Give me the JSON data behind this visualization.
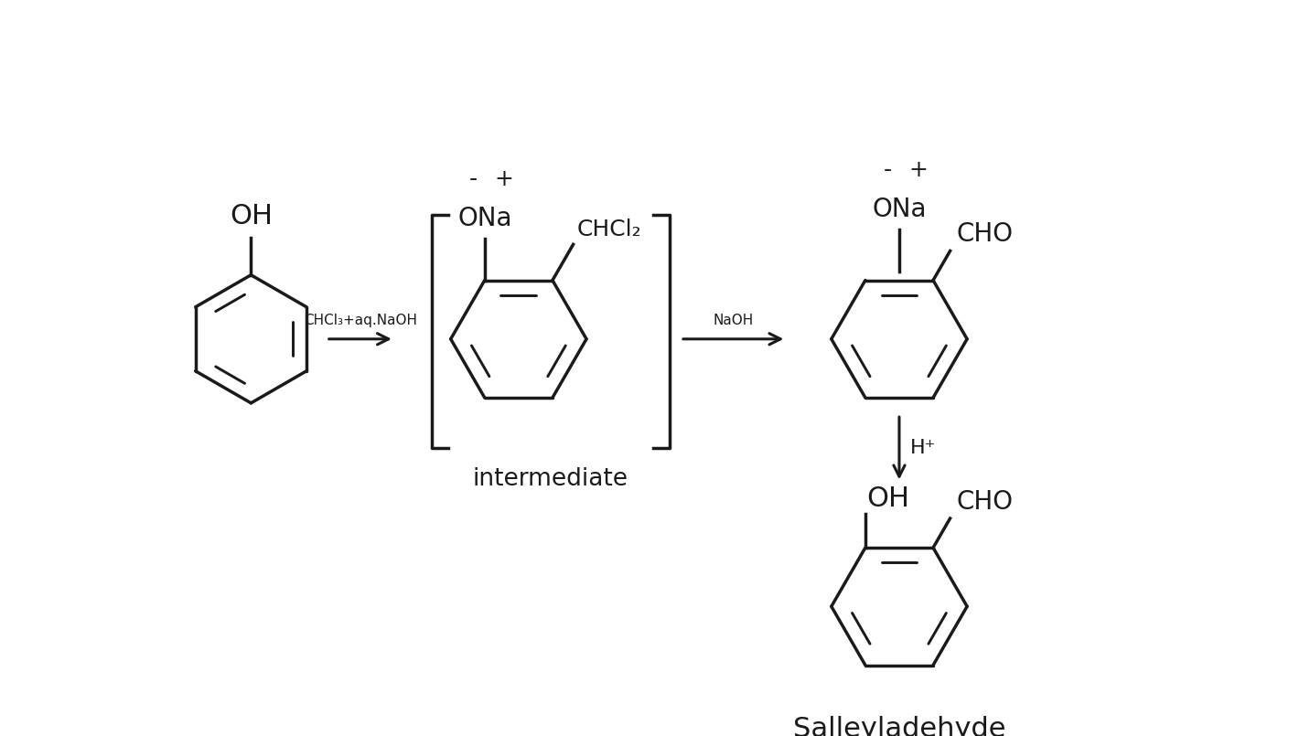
{
  "background_color": "#ffffff",
  "line_color": "#1a1a1a",
  "text_color": "#1a1a1a",
  "figsize": [
    14.32,
    8.05
  ],
  "dpi": 100,
  "xlim": [
    0,
    14.32
  ],
  "ylim": [
    -4.5,
    4.5
  ]
}
